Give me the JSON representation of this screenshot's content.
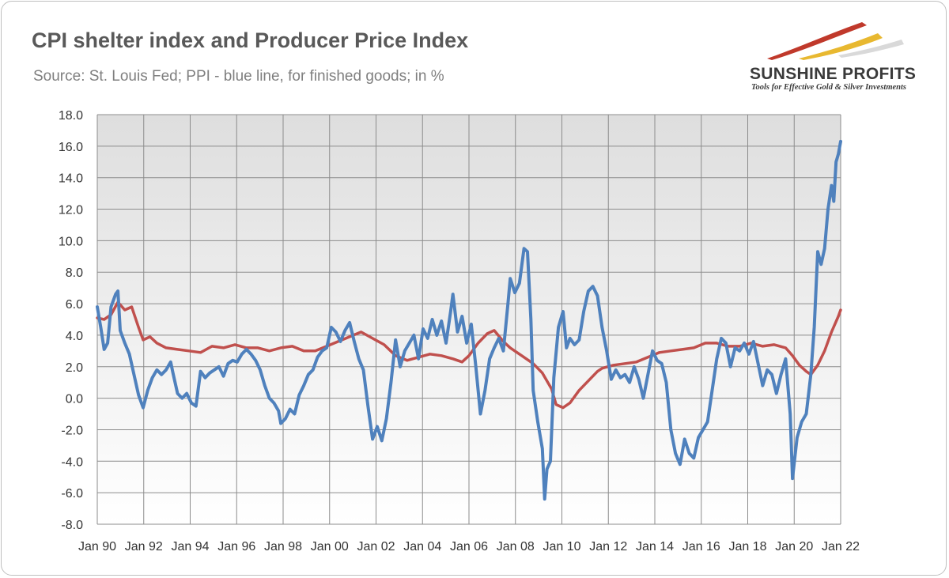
{
  "header": {
    "title": "CPI shelter index and Producer Price Index",
    "subtitle": "Source: St. Louis Fed; PPI - blue line, for finished goods; in %"
  },
  "logo": {
    "name": "SUNSHINE PROFITS",
    "tagline": "Tools for Effective Gold & Silver Investments",
    "colors": [
      "#c0392b",
      "#e8b830",
      "#d9d9d9"
    ]
  },
  "chart_data": {
    "type": "line",
    "title": "CPI shelter index and Producer Price Index",
    "subtitle": "Source: St. Louis Fed; PPI - blue line, for finished goods; in %",
    "xlabel": "",
    "ylabel": "",
    "ylim": [
      -8,
      18
    ],
    "y_ticks": [
      "18.0",
      "16.0",
      "14.0",
      "12.0",
      "10.0",
      "8.0",
      "6.0",
      "4.0",
      "2.0",
      "0.0",
      "-2.0",
      "-4.0",
      "-6.0",
      "-8.0"
    ],
    "x_ticks": [
      "Jan 90",
      "Jan 92",
      "Jan 94",
      "Jan 96",
      "Jan 98",
      "Jan 00",
      "Jan 02",
      "Jan 04",
      "Jan 06",
      "Jan 08",
      "Jan 10",
      "Jan 12",
      "Jan 14",
      "Jan 16",
      "Jan 18",
      "Jan 20",
      "Jan 22"
    ],
    "x_range": [
      1990.0,
      2022.4
    ],
    "grid": true,
    "legend": "none",
    "series": [
      {
        "color": "#c0504d",
        "points": [
          [
            1990.0,
            5.1
          ],
          [
            1990.3,
            5.0
          ],
          [
            1990.6,
            5.3
          ],
          [
            1990.9,
            6.1
          ],
          [
            1991.2,
            5.6
          ],
          [
            1991.5,
            5.8
          ],
          [
            1991.8,
            4.5
          ],
          [
            1992.0,
            3.7
          ],
          [
            1992.3,
            3.9
          ],
          [
            1992.6,
            3.5
          ],
          [
            1993.0,
            3.2
          ],
          [
            1993.5,
            3.1
          ],
          [
            1994.0,
            3.0
          ],
          [
            1994.5,
            2.9
          ],
          [
            1995.0,
            3.3
          ],
          [
            1995.5,
            3.2
          ],
          [
            1996.0,
            3.4
          ],
          [
            1996.5,
            3.2
          ],
          [
            1997.0,
            3.2
          ],
          [
            1997.5,
            3.0
          ],
          [
            1998.0,
            3.2
          ],
          [
            1998.5,
            3.3
          ],
          [
            1999.0,
            3.0
          ],
          [
            1999.5,
            3.0
          ],
          [
            2000.0,
            3.3
          ],
          [
            2000.5,
            3.6
          ],
          [
            2001.0,
            3.9
          ],
          [
            2001.5,
            4.2
          ],
          [
            2002.0,
            3.8
          ],
          [
            2002.5,
            3.4
          ],
          [
            2003.0,
            2.7
          ],
          [
            2003.5,
            2.4
          ],
          [
            2004.0,
            2.6
          ],
          [
            2004.5,
            2.8
          ],
          [
            2005.0,
            2.7
          ],
          [
            2005.5,
            2.5
          ],
          [
            2005.9,
            2.3
          ],
          [
            2006.2,
            2.7
          ],
          [
            2006.6,
            3.5
          ],
          [
            2007.0,
            4.1
          ],
          [
            2007.3,
            4.3
          ],
          [
            2007.7,
            3.6
          ],
          [
            2008.0,
            3.2
          ],
          [
            2008.5,
            2.7
          ],
          [
            2009.0,
            2.2
          ],
          [
            2009.4,
            1.6
          ],
          [
            2009.8,
            0.6
          ],
          [
            2010.0,
            -0.4
          ],
          [
            2010.3,
            -0.6
          ],
          [
            2010.6,
            -0.3
          ],
          [
            2011.0,
            0.5
          ],
          [
            2011.4,
            1.1
          ],
          [
            2011.8,
            1.7
          ],
          [
            2012.0,
            1.9
          ],
          [
            2012.5,
            2.1
          ],
          [
            2013.0,
            2.2
          ],
          [
            2013.5,
            2.3
          ],
          [
            2014.0,
            2.6
          ],
          [
            2014.5,
            2.9
          ],
          [
            2015.0,
            3.0
          ],
          [
            2015.5,
            3.1
          ],
          [
            2016.0,
            3.2
          ],
          [
            2016.5,
            3.5
          ],
          [
            2017.0,
            3.5
          ],
          [
            2017.5,
            3.3
          ],
          [
            2018.0,
            3.3
          ],
          [
            2018.5,
            3.5
          ],
          [
            2019.0,
            3.3
          ],
          [
            2019.5,
            3.4
          ],
          [
            2020.0,
            3.2
          ],
          [
            2020.3,
            2.7
          ],
          [
            2020.6,
            2.1
          ],
          [
            2020.9,
            1.7
          ],
          [
            2021.1,
            1.5
          ],
          [
            2021.4,
            2.1
          ],
          [
            2021.7,
            3.0
          ],
          [
            2022.0,
            4.2
          ],
          [
            2022.3,
            5.2
          ],
          [
            2022.4,
            5.6
          ]
        ]
      },
      {
        "color": "#4f81bd",
        "points": [
          [
            1990.0,
            5.8
          ],
          [
            1990.15,
            4.5
          ],
          [
            1990.3,
            3.1
          ],
          [
            1990.45,
            3.5
          ],
          [
            1990.6,
            5.8
          ],
          [
            1990.8,
            6.6
          ],
          [
            1990.9,
            6.8
          ],
          [
            1991.0,
            4.3
          ],
          [
            1991.2,
            3.5
          ],
          [
            1991.4,
            2.8
          ],
          [
            1991.6,
            1.5
          ],
          [
            1991.8,
            0.2
          ],
          [
            1992.0,
            -0.6
          ],
          [
            1992.2,
            0.5
          ],
          [
            1992.4,
            1.3
          ],
          [
            1992.6,
            1.8
          ],
          [
            1992.8,
            1.5
          ],
          [
            1993.0,
            1.8
          ],
          [
            1993.2,
            2.3
          ],
          [
            1993.3,
            1.6
          ],
          [
            1993.5,
            0.3
          ],
          [
            1993.7,
            0.0
          ],
          [
            1993.9,
            0.3
          ],
          [
            1994.1,
            -0.3
          ],
          [
            1994.3,
            -0.5
          ],
          [
            1994.5,
            1.7
          ],
          [
            1994.7,
            1.3
          ],
          [
            1994.9,
            1.6
          ],
          [
            1995.1,
            1.8
          ],
          [
            1995.3,
            2.0
          ],
          [
            1995.5,
            1.4
          ],
          [
            1995.7,
            2.2
          ],
          [
            1995.9,
            2.4
          ],
          [
            1996.1,
            2.3
          ],
          [
            1996.3,
            2.8
          ],
          [
            1996.5,
            3.1
          ],
          [
            1996.7,
            2.8
          ],
          [
            1996.9,
            2.4
          ],
          [
            1997.1,
            1.8
          ],
          [
            1997.3,
            0.8
          ],
          [
            1997.5,
            0.0
          ],
          [
            1997.7,
            -0.3
          ],
          [
            1997.9,
            -0.8
          ],
          [
            1998.0,
            -1.6
          ],
          [
            1998.2,
            -1.3
          ],
          [
            1998.4,
            -0.7
          ],
          [
            1998.6,
            -1.0
          ],
          [
            1998.8,
            0.2
          ],
          [
            1999.0,
            0.8
          ],
          [
            1999.2,
            1.5
          ],
          [
            1999.4,
            1.8
          ],
          [
            1999.6,
            2.6
          ],
          [
            1999.8,
            3.0
          ],
          [
            2000.0,
            3.2
          ],
          [
            2000.2,
            4.5
          ],
          [
            2000.4,
            4.2
          ],
          [
            2000.6,
            3.6
          ],
          [
            2000.8,
            4.3
          ],
          [
            2001.0,
            4.8
          ],
          [
            2001.2,
            3.6
          ],
          [
            2001.4,
            2.5
          ],
          [
            2001.6,
            1.8
          ],
          [
            2001.8,
            -0.5
          ],
          [
            2002.0,
            -2.6
          ],
          [
            2002.2,
            -1.8
          ],
          [
            2002.4,
            -2.7
          ],
          [
            2002.6,
            -1.3
          ],
          [
            2002.8,
            1.0
          ],
          [
            2003.0,
            3.7
          ],
          [
            2003.2,
            2.0
          ],
          [
            2003.4,
            3.0
          ],
          [
            2003.6,
            3.5
          ],
          [
            2003.8,
            4.0
          ],
          [
            2004.0,
            2.5
          ],
          [
            2004.2,
            4.4
          ],
          [
            2004.4,
            3.8
          ],
          [
            2004.6,
            5.0
          ],
          [
            2004.8,
            4.0
          ],
          [
            2005.0,
            4.9
          ],
          [
            2005.2,
            3.5
          ],
          [
            2005.4,
            5.5
          ],
          [
            2005.5,
            6.6
          ],
          [
            2005.7,
            4.2
          ],
          [
            2005.9,
            5.2
          ],
          [
            2006.1,
            3.5
          ],
          [
            2006.3,
            4.7
          ],
          [
            2006.5,
            2.0
          ],
          [
            2006.7,
            -1.0
          ],
          [
            2006.9,
            0.5
          ],
          [
            2007.1,
            2.5
          ],
          [
            2007.3,
            3.2
          ],
          [
            2007.5,
            3.8
          ],
          [
            2007.7,
            3.0
          ],
          [
            2007.9,
            6.0
          ],
          [
            2008.0,
            7.6
          ],
          [
            2008.2,
            6.7
          ],
          [
            2008.4,
            7.3
          ],
          [
            2008.6,
            9.5
          ],
          [
            2008.75,
            9.3
          ],
          [
            2008.9,
            5.0
          ],
          [
            2009.0,
            0.5
          ],
          [
            2009.2,
            -1.5
          ],
          [
            2009.4,
            -3.2
          ],
          [
            2009.5,
            -6.4
          ],
          [
            2009.6,
            -4.5
          ],
          [
            2009.75,
            -4.0
          ],
          [
            2009.9,
            1.3
          ],
          [
            2010.1,
            4.5
          ],
          [
            2010.3,
            5.5
          ],
          [
            2010.45,
            3.2
          ],
          [
            2010.6,
            3.8
          ],
          [
            2010.8,
            3.4
          ],
          [
            2011.0,
            3.7
          ],
          [
            2011.2,
            5.5
          ],
          [
            2011.4,
            6.8
          ],
          [
            2011.6,
            7.1
          ],
          [
            2011.8,
            6.5
          ],
          [
            2012.0,
            4.5
          ],
          [
            2012.2,
            3.0
          ],
          [
            2012.4,
            1.2
          ],
          [
            2012.6,
            1.8
          ],
          [
            2012.8,
            1.3
          ],
          [
            2013.0,
            1.5
          ],
          [
            2013.2,
            1.0
          ],
          [
            2013.4,
            2.0
          ],
          [
            2013.6,
            1.2
          ],
          [
            2013.8,
            0.0
          ],
          [
            2014.0,
            1.5
          ],
          [
            2014.2,
            3.0
          ],
          [
            2014.4,
            2.4
          ],
          [
            2014.6,
            2.2
          ],
          [
            2014.8,
            1.0
          ],
          [
            2015.0,
            -2.0
          ],
          [
            2015.2,
            -3.5
          ],
          [
            2015.4,
            -4.2
          ],
          [
            2015.6,
            -2.6
          ],
          [
            2015.8,
            -3.5
          ],
          [
            2016.0,
            -3.8
          ],
          [
            2016.2,
            -2.5
          ],
          [
            2016.4,
            -2.0
          ],
          [
            2016.6,
            -1.5
          ],
          [
            2016.8,
            0.5
          ],
          [
            2017.0,
            2.5
          ],
          [
            2017.2,
            3.8
          ],
          [
            2017.4,
            3.5
          ],
          [
            2017.6,
            2.0
          ],
          [
            2017.8,
            3.2
          ],
          [
            2018.0,
            3.0
          ],
          [
            2018.2,
            3.5
          ],
          [
            2018.4,
            2.8
          ],
          [
            2018.6,
            3.6
          ],
          [
            2018.8,
            2.2
          ],
          [
            2019.0,
            0.8
          ],
          [
            2019.2,
            1.8
          ],
          [
            2019.4,
            1.5
          ],
          [
            2019.6,
            0.3
          ],
          [
            2019.8,
            1.5
          ],
          [
            2020.0,
            2.5
          ],
          [
            2020.2,
            -1.0
          ],
          [
            2020.3,
            -5.1
          ],
          [
            2020.5,
            -2.5
          ],
          [
            2020.7,
            -1.5
          ],
          [
            2020.9,
            -1.0
          ],
          [
            2021.1,
            1.5
          ],
          [
            2021.25,
            4.5
          ],
          [
            2021.4,
            9.3
          ],
          [
            2021.55,
            8.5
          ],
          [
            2021.7,
            9.5
          ],
          [
            2021.85,
            12.0
          ],
          [
            2022.0,
            13.5
          ],
          [
            2022.1,
            12.5
          ],
          [
            2022.2,
            15.0
          ],
          [
            2022.3,
            15.5
          ],
          [
            2022.4,
            16.3
          ]
        ]
      }
    ]
  }
}
